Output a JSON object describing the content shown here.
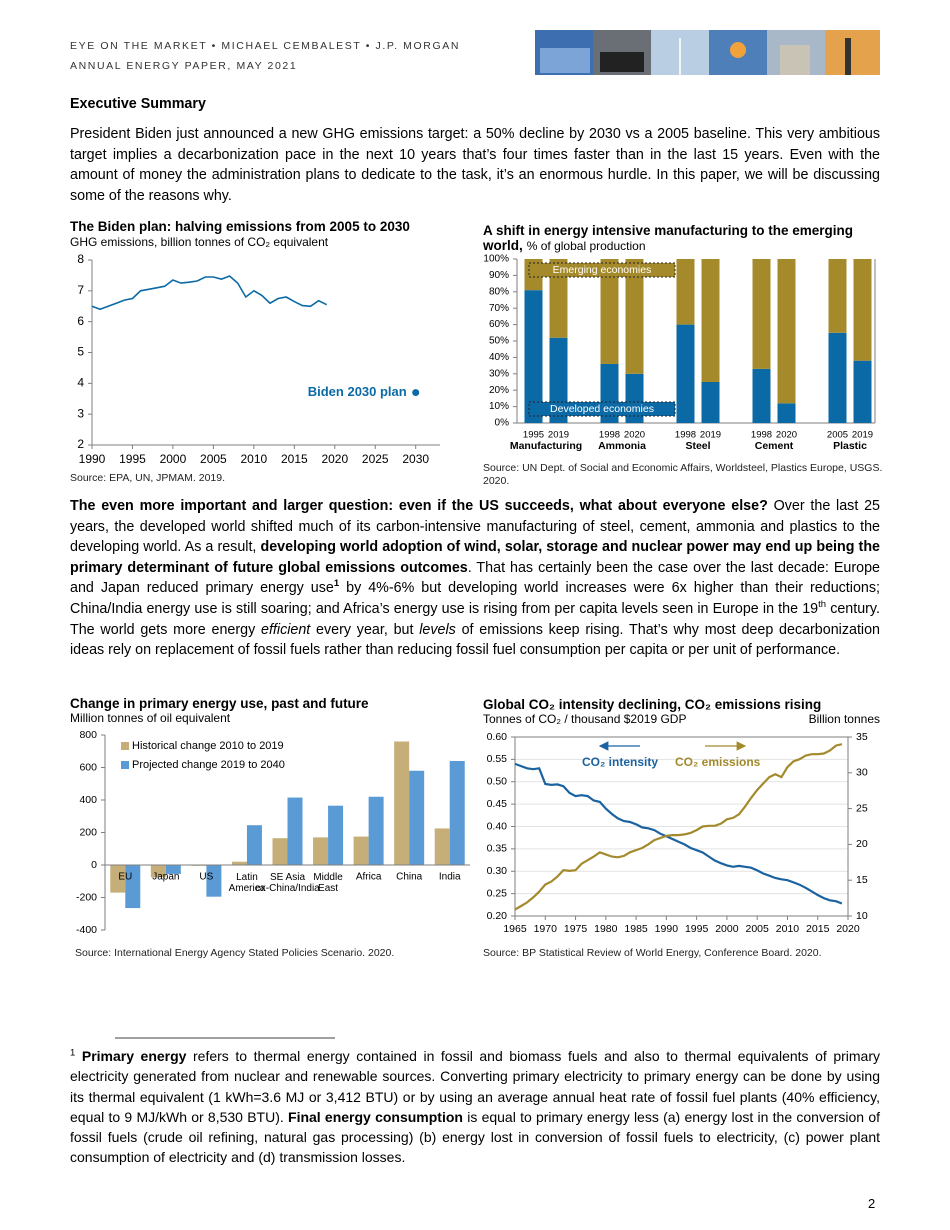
{
  "header": {
    "lines": [
      "EYE ON THE MARKET • MICHAEL CEMBALEST • J.P. MORGAN",
      "ANNUAL ENERGY PAPER, MAY 2021"
    ]
  },
  "section_title": "Executive Summary",
  "paragraphs": [
    {
      "runs": [
        {
          "text": "President Biden just announced a new GHG emissions target: a 50% decline by 2030 vs a 2005 baseline.  This very ambitious target implies a decarbonization pace in the next 10 years that’s four times faster than in the last 15 years.  Even with the amount of money the administration plans to dedicate to the task, it’s an enormous hurdle.  In this paper, we will be discussing some of the reasons why."
        }
      ]
    },
    {
      "runs": [
        {
          "text": "The even more important and larger question: even if the US succeeds, what about everyone else?",
          "bold": true
        },
        {
          "text": "  Over the last 25 years, the developed world shifted much of its carbon-intensive manufacturing of steel, cement, ammonia and plastics to the developing world.  As a result, "
        },
        {
          "text": "developing world adoption of wind, solar, storage and nuclear power may end up being the primary determinant of future global emissions outcomes",
          "bold": true
        },
        {
          "text": ".  That has certainly been the case over the last decade: Europe and Japan reduced primary energy use"
        },
        {
          "text": "1",
          "sup": true,
          "bold": true
        },
        {
          "text": " by 4%-6% but developing world increases were 6x higher than their reductions; China/India energy use is still soaring; and Africa’s energy use is rising from per capita levels seen in Europe in the 19"
        },
        {
          "text": "th",
          "sup": true
        },
        {
          "text": " century.   The world gets more energy "
        },
        {
          "text": "efficient",
          "italic": true
        },
        {
          "text": " every year, but "
        },
        {
          "text": "levels",
          "italic": true
        },
        {
          "text": " of emissions keep rising.  That’s why most deep decarbonization ideas rely on replacement of fossil fuels rather than reducing fossil fuel consumption per capita or per unit of performance."
        }
      ]
    }
  ],
  "chart_data": [
    {
      "type": "line",
      "title": "The Biden plan: halving emissions from 2005 to 2030",
      "subtitle": "GHG emissions, billion tonnes of CO₂ equivalent",
      "x": [
        1990,
        1991,
        1992,
        1993,
        1994,
        1995,
        1996,
        1997,
        1998,
        1999,
        2000,
        2001,
        2002,
        2003,
        2004,
        2005,
        2006,
        2007,
        2008,
        2009,
        2010,
        2011,
        2012,
        2013,
        2014,
        2015,
        2016,
        2017,
        2018,
        2019
      ],
      "series": [
        {
          "color": "#0b6aa6",
          "values": [
            6.5,
            6.4,
            6.5,
            6.6,
            6.7,
            6.75,
            7.0,
            7.05,
            7.1,
            7.15,
            7.35,
            7.25,
            7.28,
            7.32,
            7.45,
            7.45,
            7.38,
            7.48,
            7.25,
            6.8,
            7.0,
            6.85,
            6.6,
            6.75,
            6.8,
            6.65,
            6.52,
            6.5,
            6.68,
            6.55
          ]
        }
      ],
      "annotation": {
        "text": "Biden 2030 plan",
        "x": 2030,
        "y": 3.7,
        "color": "#0b6aa6"
      },
      "xlim": [
        1990,
        2033
      ],
      "xticks": [
        1990,
        1995,
        2000,
        2005,
        2010,
        2015,
        2020,
        2025,
        2030
      ],
      "ylim": [
        2,
        8
      ],
      "yticks": [
        2,
        3,
        4,
        5,
        6,
        7,
        8
      ],
      "source": "Source: EPA, UN, JPMAM. 2019."
    },
    {
      "type": "stacked_bar",
      "title": "A shift in energy intensive manufacturing to the emerging world,",
      "subtitle": "% of global production",
      "categories": [
        "1995",
        "2019",
        "1998",
        "2020",
        "1998",
        "2019",
        "1998",
        "2020",
        "2005",
        "2019"
      ],
      "groups": [
        "Manufacturing",
        "Ammonia",
        "Steel",
        "Cement",
        "Plastic"
      ],
      "series": [
        {
          "name": "Developed economies",
          "color": "#0b6aa6",
          "values": [
            81,
            52,
            36,
            30,
            60,
            25,
            33,
            12,
            55,
            38
          ]
        },
        {
          "name": "Emerging economies",
          "color": "#a58a2b",
          "values": [
            19,
            48,
            64,
            70,
            40,
            75,
            67,
            88,
            45,
            62
          ]
        }
      ],
      "ylim": [
        0,
        100
      ],
      "yticks": [
        {
          "value": 0,
          "label": "0%"
        },
        {
          "value": 10,
          "label": "10%"
        },
        {
          "value": 20,
          "label": "20%"
        },
        {
          "value": 30,
          "label": "30%"
        },
        {
          "value": 40,
          "label": "40%"
        },
        {
          "value": 50,
          "label": "50%"
        },
        {
          "value": 60,
          "label": "60%"
        },
        {
          "value": 70,
          "label": "70%"
        },
        {
          "value": 80,
          "label": "80%"
        },
        {
          "value": 90,
          "label": "90%"
        },
        {
          "value": 100,
          "label": "100%"
        }
      ],
      "source": "Source: UN Dept. of Social and Economic Affairs, Worldsteel, Plastics Europe, USGS. 2020."
    },
    {
      "type": "grouped_bar",
      "title": "Change in primary energy use, past and future",
      "subtitle": "Million tonnes of oil equivalent",
      "categories": [
        "EU",
        "Japan",
        "US",
        "Latin America",
        "SE Asia ex-China/India",
        "Middle East",
        "Africa",
        "China",
        "India"
      ],
      "series": [
        {
          "name": "Historical change 2010 to 2019",
          "color": "#c5ae77",
          "values": [
            -170,
            -75,
            -5,
            20,
            165,
            170,
            175,
            760,
            225
          ]
        },
        {
          "name": "Projected change 2019 to 2040",
          "color": "#5b9bd5",
          "values": [
            -265,
            -55,
            -195,
            245,
            415,
            365,
            420,
            580,
            640
          ]
        }
      ],
      "ylim": [
        -400,
        800
      ],
      "yticks": [
        -400,
        -200,
        0,
        200,
        400,
        600,
        800
      ],
      "legend": "upper left",
      "source": "Source: International Energy Agency Stated Policies Scenario. 2020."
    },
    {
      "type": "dual_line",
      "title": "Global CO₂ intensity declining, CO₂ emissions rising",
      "subtitle": "Tonnes of CO₂ / thousand $2019 GDP",
      "y2_label": "Billion tonnes",
      "x": [
        1965,
        1966,
        1967,
        1968,
        1969,
        1970,
        1971,
        1972,
        1973,
        1974,
        1975,
        1976,
        1977,
        1978,
        1979,
        1980,
        1981,
        1982,
        1983,
        1984,
        1985,
        1986,
        1987,
        1988,
        1989,
        1990,
        1991,
        1992,
        1993,
        1994,
        1995,
        1996,
        1997,
        1998,
        1999,
        2000,
        2001,
        2002,
        2003,
        2004,
        2005,
        2006,
        2007,
        2008,
        2009,
        2010,
        2011,
        2012,
        2013,
        2014,
        2015,
        2016,
        2017,
        2018,
        2019
      ],
      "series": [
        {
          "name": "CO₂ intensity",
          "color": "#1b63a0",
          "values": [
            0.54,
            0.535,
            0.53,
            0.528,
            0.53,
            0.495,
            0.493,
            0.494,
            0.49,
            0.475,
            0.468,
            0.47,
            0.468,
            0.458,
            0.455,
            0.44,
            0.428,
            0.418,
            0.412,
            0.41,
            0.405,
            0.398,
            0.396,
            0.392,
            0.384,
            0.378,
            0.372,
            0.366,
            0.36,
            0.352,
            0.347,
            0.342,
            0.333,
            0.324,
            0.318,
            0.313,
            0.31,
            0.312,
            0.31,
            0.308,
            0.302,
            0.295,
            0.29,
            0.285,
            0.282,
            0.28,
            0.275,
            0.27,
            0.263,
            0.255,
            0.247,
            0.24,
            0.235,
            0.233,
            0.228
          ]
        },
        {
          "name": "CO₂ emissions",
          "color": "#a38a2c",
          "axis": "y2",
          "values": [
            10.9,
            11.4,
            11.9,
            12.6,
            13.4,
            14.4,
            14.8,
            15.5,
            16.4,
            16.3,
            16.4,
            17.3,
            17.8,
            18.3,
            18.9,
            18.6,
            18.3,
            18.2,
            18.4,
            18.9,
            19.2,
            19.5,
            20.0,
            20.6,
            20.9,
            21.2,
            21.3,
            21.3,
            21.4,
            21.6,
            22.0,
            22.5,
            22.6,
            22.6,
            22.9,
            23.5,
            23.7,
            24.2,
            25.3,
            26.5,
            27.6,
            28.5,
            29.4,
            29.8,
            29.4,
            30.8,
            31.6,
            31.9,
            32.4,
            32.6,
            32.6,
            32.7,
            33.1,
            33.8,
            34.0
          ]
        }
      ],
      "xlim": [
        1965,
        2020
      ],
      "xticks": [
        1965,
        1970,
        1975,
        1980,
        1985,
        1990,
        1995,
        2000,
        2005,
        2010,
        2015,
        2020
      ],
      "ylim": [
        0.2,
        0.6
      ],
      "yticks": [
        {
          "value": 0.2,
          "label": "0.20"
        },
        0.25,
        {
          "value": 0.3,
          "label": "0.30"
        },
        0.35,
        {
          "value": 0.4,
          "label": "0.40"
        },
        0.45,
        {
          "value": 0.5,
          "label": "0.50"
        },
        0.55,
        {
          "value": 0.6,
          "label": "0.60"
        }
      ],
      "y2lim": [
        10,
        35
      ],
      "y2ticks": [
        10,
        15,
        20,
        25,
        30,
        35
      ],
      "grid": true,
      "source": "Source: BP Statistical Review of World Energy, Conference Board. 2020."
    }
  ],
  "footnote": {
    "runs": [
      {
        "text": "1",
        "sup": true
      },
      {
        "text": " Primary energy",
        "bold": true
      },
      {
        "text": " refers to thermal energy contained in fossil and biomass fuels and also to thermal equivalents of primary electricity generated from nuclear and renewable sources. Converting primary electricity to primary energy can be done by using its thermal equivalent (1 kWh=3.6 MJ or 3,412 BTU) or by using an average annual heat rate of fossil fuel plants (40% efficiency, equal to 9 MJ/kWh or 8,530 BTU).  "
      },
      {
        "text": "Final energy consumption",
        "bold": true
      },
      {
        "text": " is equal to primary energy less (a) energy lost in the conversion of fossil fuels (crude oil refining, natural gas processing) (b) energy lost in conversion of fossil fuels to electricity, (c) power plant consumption of electricity and (d) transmission losses."
      }
    ]
  },
  "page_number": "2"
}
